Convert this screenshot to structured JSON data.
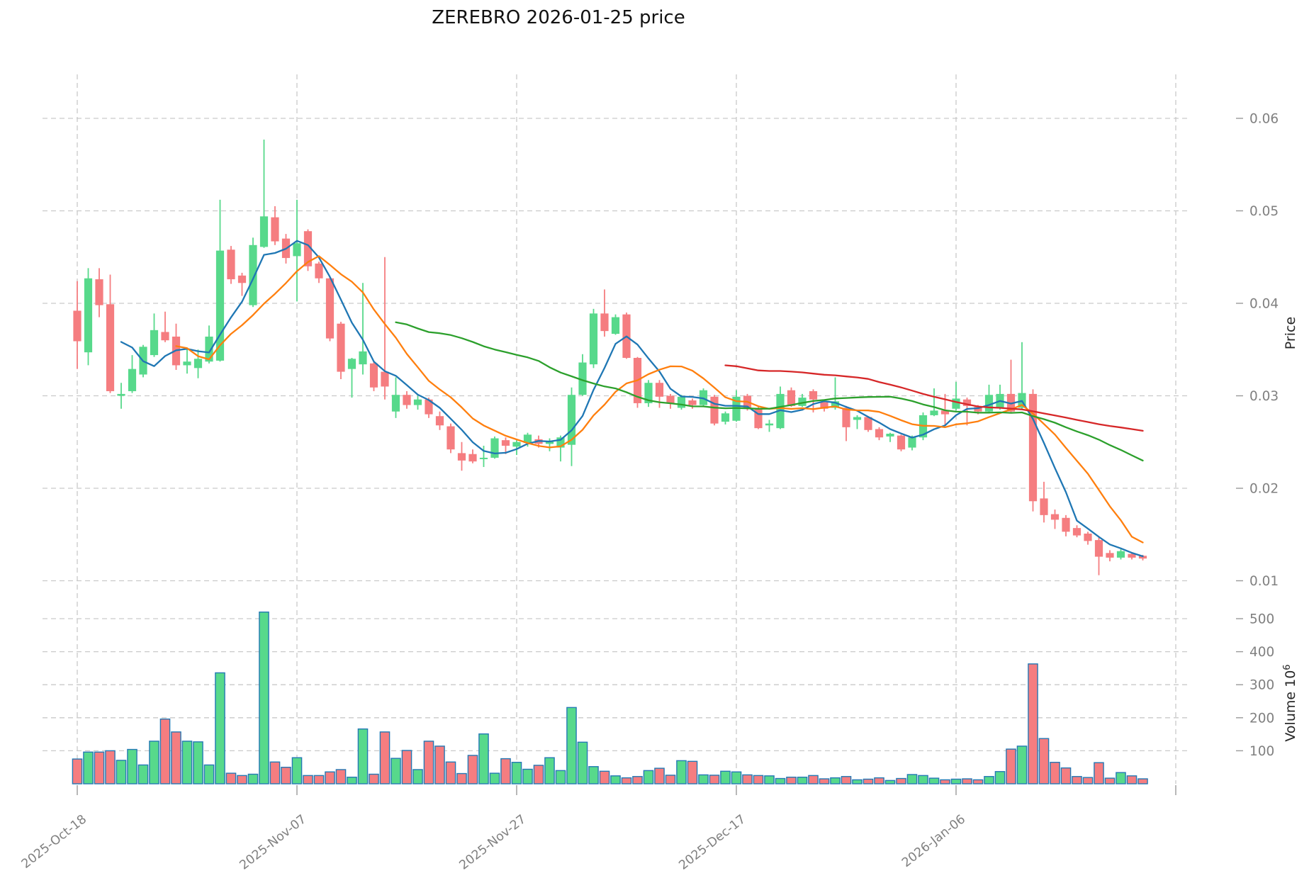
{
  "title": "ZEREBRO  2026-01-25  price",
  "chart_data": {
    "type": "candlestick",
    "subplots": [
      "price",
      "volume"
    ],
    "price_axis": {
      "label": "Price",
      "ticks": [
        0.01,
        0.02,
        0.03,
        0.04,
        0.05,
        0.06
      ],
      "ylim": [
        0.0073,
        0.0648
      ],
      "grid": true
    },
    "volume_axis": {
      "label": "Volume",
      "unit_base": "10",
      "unit_exponent": "6",
      "ticks": [
        100,
        200,
        300,
        400,
        500
      ],
      "ylim": [
        0,
        560
      ],
      "grid": true
    },
    "x_axis": {
      "tick_labels": [
        "2025-Oct-18",
        "2025-Nov-07",
        "2025-Nov-27",
        "2025-Dec-17",
        "2026-Jan-06"
      ],
      "tick_candle_indices": [
        0,
        20,
        40,
        60,
        80
      ],
      "extra_gridline_index": 100,
      "label_rotation_deg": -38
    },
    "moving_averages": [
      {
        "name": "mav5",
        "window": 5,
        "color": "#1f77b4"
      },
      {
        "name": "mav10",
        "window": 10,
        "color": "#ff7f0e"
      },
      {
        "name": "mav30",
        "window": 30,
        "color": "#2ca02c"
      },
      {
        "name": "mav60",
        "window": 60,
        "color": "#d62728"
      }
    ],
    "colors": {
      "up": "#57d98b",
      "down": "#f57d80",
      "volume_bar_edge": "#2479b5",
      "grid": "#c9c9c9",
      "tick_text": "#808080",
      "axis_label_text": "#262626",
      "title_text": "#111111"
    },
    "candles_format": [
      "open",
      "high",
      "low",
      "close",
      "volume_millions"
    ],
    "candles": [
      [
        0.0392,
        0.0424,
        0.0329,
        0.0359,
        75
      ],
      [
        0.0347,
        0.0438,
        0.0333,
        0.0427,
        96
      ],
      [
        0.0426,
        0.0438,
        0.0385,
        0.0398,
        96
      ],
      [
        0.0399,
        0.0431,
        0.0303,
        0.0305,
        100
      ],
      [
        0.03,
        0.0314,
        0.0286,
        0.0302,
        71
      ],
      [
        0.0305,
        0.0344,
        0.0303,
        0.0329,
        104
      ],
      [
        0.0323,
        0.0355,
        0.032,
        0.0353,
        57
      ],
      [
        0.0344,
        0.0389,
        0.0342,
        0.0371,
        129
      ],
      [
        0.0369,
        0.0391,
        0.0358,
        0.036,
        196
      ],
      [
        0.0364,
        0.0378,
        0.0328,
        0.0333,
        157
      ],
      [
        0.0333,
        0.0351,
        0.0324,
        0.0337,
        129
      ],
      [
        0.033,
        0.035,
        0.0319,
        0.034,
        127
      ],
      [
        0.0337,
        0.0376,
        0.0335,
        0.0364,
        57
      ],
      [
        0.0338,
        0.0512,
        0.0337,
        0.0457,
        336
      ],
      [
        0.0458,
        0.0462,
        0.0421,
        0.0426,
        32
      ],
      [
        0.043,
        0.0433,
        0.0408,
        0.0422,
        25
      ],
      [
        0.0398,
        0.0471,
        0.0396,
        0.0463,
        29
      ],
      [
        0.0461,
        0.0577,
        0.046,
        0.0494,
        520
      ],
      [
        0.0493,
        0.0505,
        0.0463,
        0.0467,
        66
      ],
      [
        0.047,
        0.0475,
        0.0443,
        0.0449,
        50
      ],
      [
        0.0451,
        0.0512,
        0.0402,
        0.0465,
        79
      ],
      [
        0.0478,
        0.048,
        0.0435,
        0.044,
        25
      ],
      [
        0.0443,
        0.0445,
        0.0422,
        0.0427,
        25
      ],
      [
        0.0427,
        0.0429,
        0.0359,
        0.0362,
        36
      ],
      [
        0.0378,
        0.038,
        0.0318,
        0.0326,
        43
      ],
      [
        0.0329,
        0.0341,
        0.0298,
        0.034,
        20
      ],
      [
        0.0334,
        0.0422,
        0.0323,
        0.0348,
        166
      ],
      [
        0.0335,
        0.0337,
        0.0305,
        0.0309,
        29
      ],
      [
        0.0326,
        0.045,
        0.0296,
        0.031,
        157
      ],
      [
        0.0283,
        0.032,
        0.0276,
        0.0301,
        77
      ],
      [
        0.0301,
        0.0305,
        0.0286,
        0.029,
        101
      ],
      [
        0.029,
        0.03,
        0.0285,
        0.0296,
        43
      ],
      [
        0.0296,
        0.0298,
        0.0276,
        0.028,
        129
      ],
      [
        0.0278,
        0.0283,
        0.0263,
        0.0268,
        114
      ],
      [
        0.0267,
        0.027,
        0.0238,
        0.0242,
        66
      ],
      [
        0.0238,
        0.025,
        0.0219,
        0.023,
        31
      ],
      [
        0.0237,
        0.0242,
        0.0227,
        0.0229,
        86
      ],
      [
        0.0232,
        0.0246,
        0.0223,
        0.0233,
        151
      ],
      [
        0.0233,
        0.0256,
        0.0232,
        0.0254,
        32
      ],
      [
        0.0252,
        0.0255,
        0.0237,
        0.0246,
        76
      ],
      [
        0.0245,
        0.0252,
        0.0236,
        0.025,
        65
      ],
      [
        0.0249,
        0.026,
        0.0245,
        0.0258,
        44
      ],
      [
        0.0253,
        0.0257,
        0.0244,
        0.0248,
        56
      ],
      [
        0.0248,
        0.0254,
        0.024,
        0.0251,
        79
      ],
      [
        0.0244,
        0.0257,
        0.0229,
        0.0255,
        40
      ],
      [
        0.0247,
        0.0309,
        0.0224,
        0.0301,
        231
      ],
      [
        0.0301,
        0.0345,
        0.03,
        0.0336,
        126
      ],
      [
        0.0334,
        0.0394,
        0.033,
        0.0389,
        52
      ],
      [
        0.0389,
        0.0415,
        0.0364,
        0.037,
        38
      ],
      [
        0.0367,
        0.0388,
        0.0366,
        0.0385,
        24
      ],
      [
        0.0388,
        0.039,
        0.034,
        0.0341,
        18
      ],
      [
        0.0341,
        0.0342,
        0.0287,
        0.0292,
        22
      ],
      [
        0.0292,
        0.0317,
        0.0288,
        0.0314,
        40
      ],
      [
        0.0314,
        0.0317,
        0.0287,
        0.0299,
        47
      ],
      [
        0.03,
        0.0302,
        0.0286,
        0.0292,
        26
      ],
      [
        0.0287,
        0.0301,
        0.0285,
        0.0299,
        70
      ],
      [
        0.0295,
        0.0297,
        0.0286,
        0.029,
        68
      ],
      [
        0.029,
        0.0308,
        0.0289,
        0.0306,
        27
      ],
      [
        0.0299,
        0.0301,
        0.0268,
        0.027,
        26
      ],
      [
        0.0272,
        0.0283,
        0.0269,
        0.0281,
        38
      ],
      [
        0.0273,
        0.0306,
        0.0272,
        0.0299,
        36
      ],
      [
        0.03,
        0.0302,
        0.0284,
        0.0286,
        27
      ],
      [
        0.0286,
        0.0288,
        0.0264,
        0.0265,
        25
      ],
      [
        0.0268,
        0.0274,
        0.0261,
        0.027,
        24
      ],
      [
        0.0265,
        0.031,
        0.0264,
        0.0302,
        16
      ],
      [
        0.0306,
        0.0309,
        0.0288,
        0.0289,
        20
      ],
      [
        0.0289,
        0.0302,
        0.0288,
        0.0298,
        20
      ],
      [
        0.0305,
        0.0307,
        0.0282,
        0.0296,
        25
      ],
      [
        0.0293,
        0.0296,
        0.0283,
        0.0286,
        15
      ],
      [
        0.0287,
        0.032,
        0.0285,
        0.0294,
        18
      ],
      [
        0.0287,
        0.0289,
        0.0251,
        0.0266,
        22
      ],
      [
        0.0274,
        0.0279,
        0.0264,
        0.0277,
        12
      ],
      [
        0.0277,
        0.0278,
        0.0261,
        0.0263,
        14
      ],
      [
        0.0264,
        0.0266,
        0.0252,
        0.0255,
        18
      ],
      [
        0.0256,
        0.026,
        0.025,
        0.0259,
        10
      ],
      [
        0.0257,
        0.0258,
        0.024,
        0.0242,
        16
      ],
      [
        0.0244,
        0.0257,
        0.0241,
        0.0255,
        28
      ],
      [
        0.0255,
        0.0282,
        0.0252,
        0.0279,
        25
      ],
      [
        0.0279,
        0.0308,
        0.0278,
        0.0284,
        17
      ],
      [
        0.0284,
        0.0302,
        0.0268,
        0.028,
        12
      ],
      [
        0.0286,
        0.0315,
        0.0284,
        0.0297,
        14
      ],
      [
        0.0296,
        0.0298,
        0.0268,
        0.0289,
        15
      ],
      [
        0.0288,
        0.029,
        0.028,
        0.0283,
        12
      ],
      [
        0.0283,
        0.0312,
        0.0282,
        0.0301,
        22
      ],
      [
        0.0287,
        0.0312,
        0.0285,
        0.0302,
        37
      ],
      [
        0.0302,
        0.0339,
        0.0282,
        0.0283,
        105
      ],
      [
        0.0287,
        0.0358,
        0.0285,
        0.0303,
        114
      ],
      [
        0.0302,
        0.0307,
        0.0175,
        0.0186,
        363
      ],
      [
        0.0189,
        0.0207,
        0.0163,
        0.0171,
        137
      ],
      [
        0.0172,
        0.0177,
        0.0156,
        0.0166,
        65
      ],
      [
        0.0168,
        0.0171,
        0.0148,
        0.0153,
        48
      ],
      [
        0.0157,
        0.016,
        0.0147,
        0.0149,
        22
      ],
      [
        0.0151,
        0.0153,
        0.0139,
        0.0143,
        19
      ],
      [
        0.0144,
        0.0147,
        0.0106,
        0.0126,
        64
      ],
      [
        0.013,
        0.0133,
        0.0121,
        0.0125,
        17
      ],
      [
        0.0125,
        0.0134,
        0.0123,
        0.0132,
        34
      ],
      [
        0.0129,
        0.0131,
        0.0123,
        0.0125,
        24
      ],
      [
        0.0127,
        0.0128,
        0.0122,
        0.0124,
        15
      ]
    ]
  }
}
